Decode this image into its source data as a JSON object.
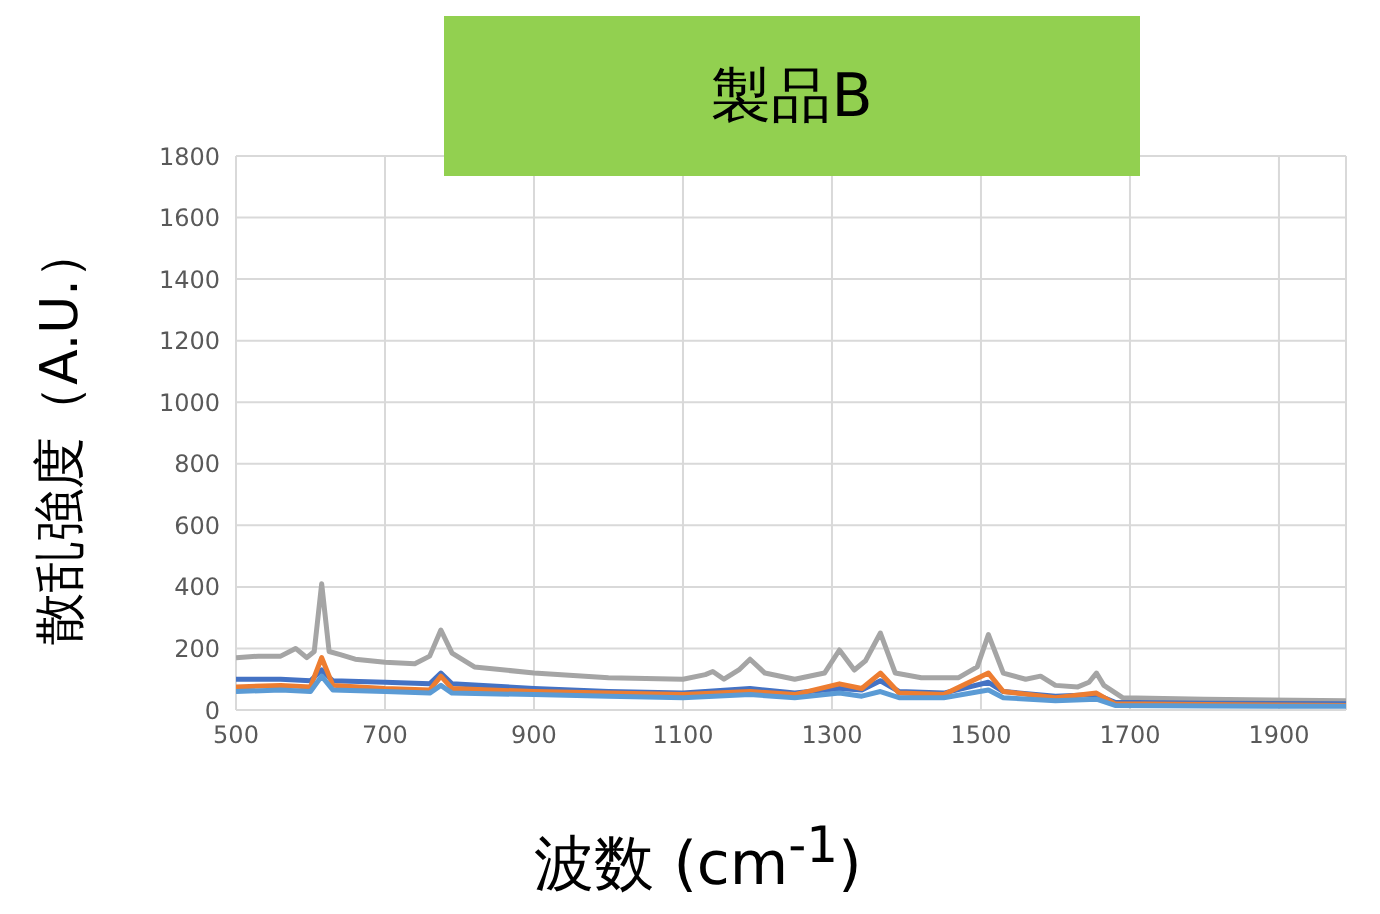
{
  "chart_data": {
    "type": "line",
    "title": "製品B",
    "xlabel": "波数 (cm$^{-1}$)",
    "ylabel": "散乱強度（A.U.）",
    "xlim": [
      500,
      1990
    ],
    "xticks": [
      500,
      700,
      900,
      1100,
      1300,
      1500,
      1700,
      1900
    ],
    "ylim": [
      0,
      1800
    ],
    "yticks": [
      0,
      200,
      400,
      600,
      800,
      1000,
      1200,
      1400,
      1600,
      1800
    ],
    "grid": true,
    "legend": false,
    "marker": "none",
    "line_style": "solid",
    "series": [
      {
        "color": "#a5a5a5",
        "x": [
          500,
          530,
          560,
          580,
          595,
          605,
          615,
          625,
          640,
          660,
          700,
          740,
          760,
          775,
          790,
          820,
          900,
          1000,
          1100,
          1130,
          1140,
          1155,
          1175,
          1190,
          1210,
          1250,
          1290,
          1310,
          1330,
          1345,
          1365,
          1385,
          1420,
          1470,
          1495,
          1510,
          1530,
          1560,
          1580,
          1600,
          1630,
          1645,
          1655,
          1665,
          1690,
          1800,
          1990
        ],
        "values": [
          170,
          175,
          175,
          200,
          170,
          190,
          410,
          190,
          180,
          165,
          155,
          150,
          175,
          260,
          185,
          140,
          120,
          105,
          100,
          115,
          125,
          100,
          130,
          165,
          120,
          100,
          120,
          195,
          130,
          160,
          250,
          120,
          105,
          105,
          140,
          245,
          120,
          100,
          110,
          80,
          75,
          90,
          120,
          80,
          40,
          35,
          30
        ]
      },
      {
        "color": "#4472c4",
        "x": [
          500,
          560,
          600,
          615,
          630,
          700,
          760,
          775,
          790,
          900,
          1000,
          1100,
          1190,
          1250,
          1310,
          1340,
          1365,
          1390,
          1450,
          1510,
          1530,
          1600,
          1655,
          1680,
          1800,
          1990
        ],
        "values": [
          100,
          100,
          95,
          130,
          95,
          90,
          85,
          120,
          85,
          70,
          60,
          55,
          70,
          55,
          70,
          65,
          95,
          60,
          55,
          90,
          60,
          45,
          50,
          25,
          22,
          20
        ]
      },
      {
        "color": "#ed7d31",
        "x": [
          500,
          560,
          600,
          615,
          630,
          700,
          760,
          775,
          790,
          900,
          1000,
          1100,
          1190,
          1250,
          1310,
          1340,
          1365,
          1390,
          1450,
          1510,
          1530,
          1600,
          1655,
          1680,
          1800,
          1990
        ],
        "values": [
          75,
          80,
          75,
          170,
          80,
          70,
          65,
          110,
          70,
          60,
          55,
          50,
          60,
          50,
          85,
          70,
          120,
          55,
          50,
          120,
          60,
          40,
          55,
          20,
          18,
          15
        ]
      },
      {
        "color": "#5b9bd5",
        "x": [
          500,
          560,
          600,
          615,
          630,
          700,
          760,
          775,
          790,
          900,
          1000,
          1100,
          1190,
          1250,
          1310,
          1340,
          1365,
          1390,
          1450,
          1510,
          1530,
          1600,
          1655,
          1680,
          1800,
          1990
        ],
        "values": [
          60,
          65,
          60,
          110,
          65,
          60,
          55,
          80,
          55,
          50,
          45,
          40,
          50,
          40,
          55,
          45,
          60,
          40,
          40,
          65,
          40,
          30,
          35,
          15,
          13,
          12
        ]
      }
    ]
  }
}
